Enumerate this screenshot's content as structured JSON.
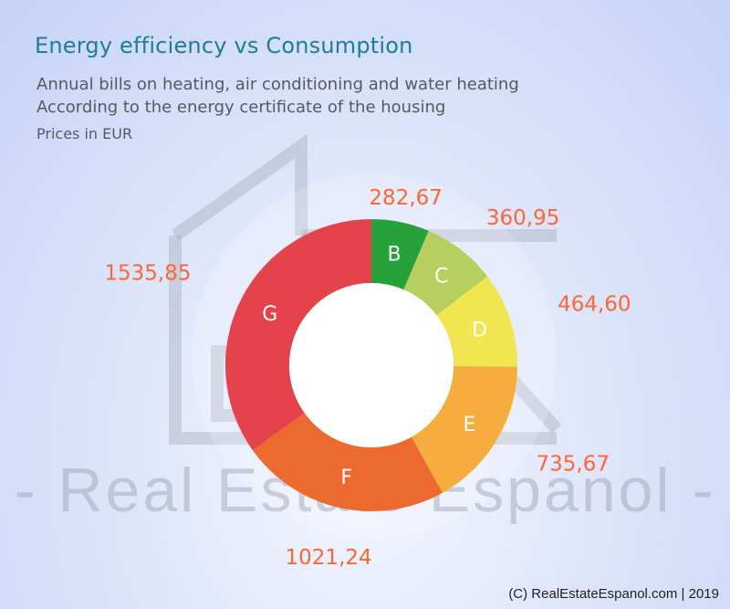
{
  "header": {
    "title": "Energy efficiency vs Consumption",
    "subtitle_line1": "Annual bills on heating, air conditioning and water heating",
    "subtitle_line2": "According to the energy certificate of the housing",
    "units_note": "Prices in EUR"
  },
  "watermark": {
    "text": "- Real Estate Espanol -"
  },
  "footer": {
    "credit": "(C) RealEstateEspanol.com | 2019"
  },
  "chart_data": {
    "type": "pie",
    "variant": "donut",
    "categories": [
      "B",
      "C",
      "D",
      "E",
      "F",
      "G"
    ],
    "values": [
      282.67,
      360.95,
      464.6,
      735.67,
      1021.24,
      1535.85
    ],
    "value_labels": [
      "282,67",
      "360,95",
      "464,60",
      "735,67",
      "1021,24",
      "1535,85"
    ],
    "colors": [
      "#27a13a",
      "#b7cf5e",
      "#efe651",
      "#f6ad3d",
      "#ec6a30",
      "#e5434c"
    ],
    "value_label_color": "#ff6633",
    "start": "12 o'clock",
    "direction": "clockwise",
    "legend": "none"
  }
}
